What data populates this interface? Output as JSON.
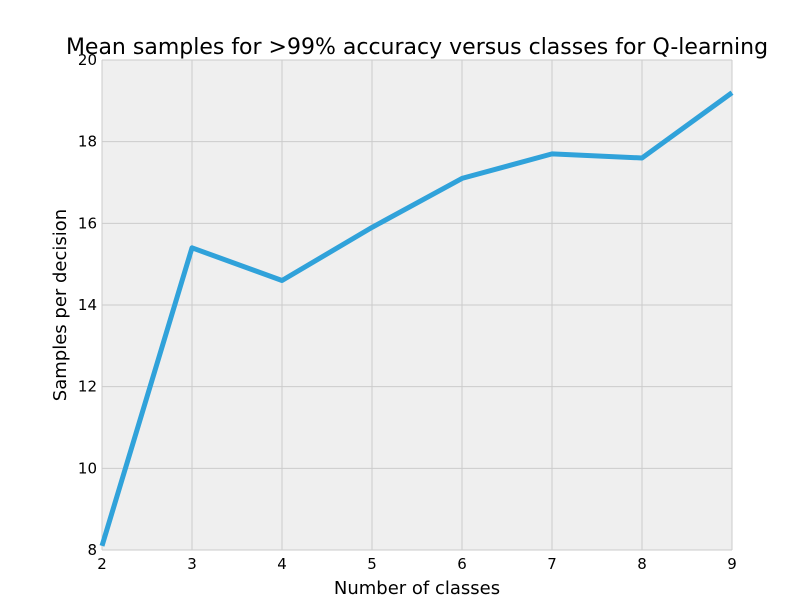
{
  "chart_data": {
    "type": "line",
    "title": "Mean samples for >99% accuracy versus classes for Q-learning",
    "xlabel": "Number of classes",
    "ylabel": "Samples per decision",
    "xlim": [
      2,
      9
    ],
    "ylim": [
      8,
      20
    ],
    "xticks": [
      2,
      3,
      4,
      5,
      6,
      7,
      8,
      9
    ],
    "yticks": [
      8,
      10,
      12,
      14,
      16,
      18,
      20
    ],
    "grid": true,
    "series": [
      {
        "x": [
          2,
          3,
          4,
          5,
          6,
          7,
          8,
          9
        ],
        "y": [
          8.1,
          15.4,
          14.6,
          15.9,
          17.1,
          17.7,
          17.6,
          19.2
        ],
        "color": "#30a2da"
      }
    ]
  }
}
